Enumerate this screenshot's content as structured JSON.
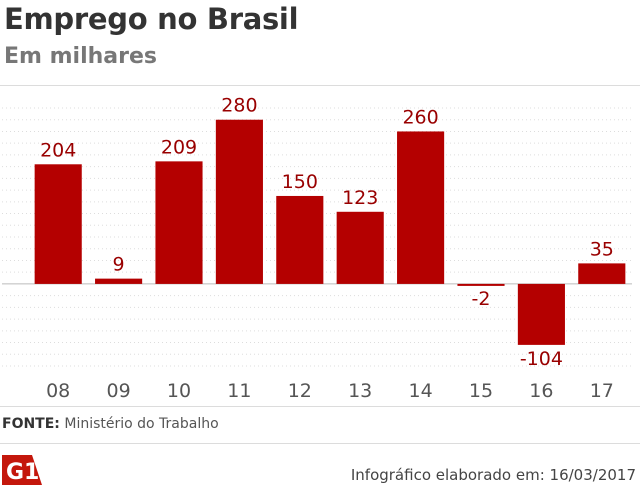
{
  "header": {
    "title": "Emprego no Brasil",
    "subtitle": "Em milhares"
  },
  "source": {
    "label": "FONTE:",
    "text": "Ministério do Trabalho"
  },
  "footer": {
    "logo_text": "G1",
    "note": "Infográfico elaborado em: 16/03/2017"
  },
  "colors": {
    "bar": "#b40000",
    "label": "#990000",
    "grid": "#dddddd",
    "axis_text": "#555555"
  },
  "chart_data": {
    "type": "bar",
    "title": "Emprego no Brasil",
    "subtitle": "Em milhares",
    "xlabel": "",
    "ylabel": "",
    "categories": [
      "08",
      "09",
      "10",
      "11",
      "12",
      "13",
      "14",
      "15",
      "16",
      "17"
    ],
    "values": [
      204,
      9,
      209,
      280,
      150,
      123,
      260,
      -2,
      -104,
      35
    ],
    "ylim": [
      -140,
      300
    ],
    "grid": true,
    "legend": "none"
  }
}
